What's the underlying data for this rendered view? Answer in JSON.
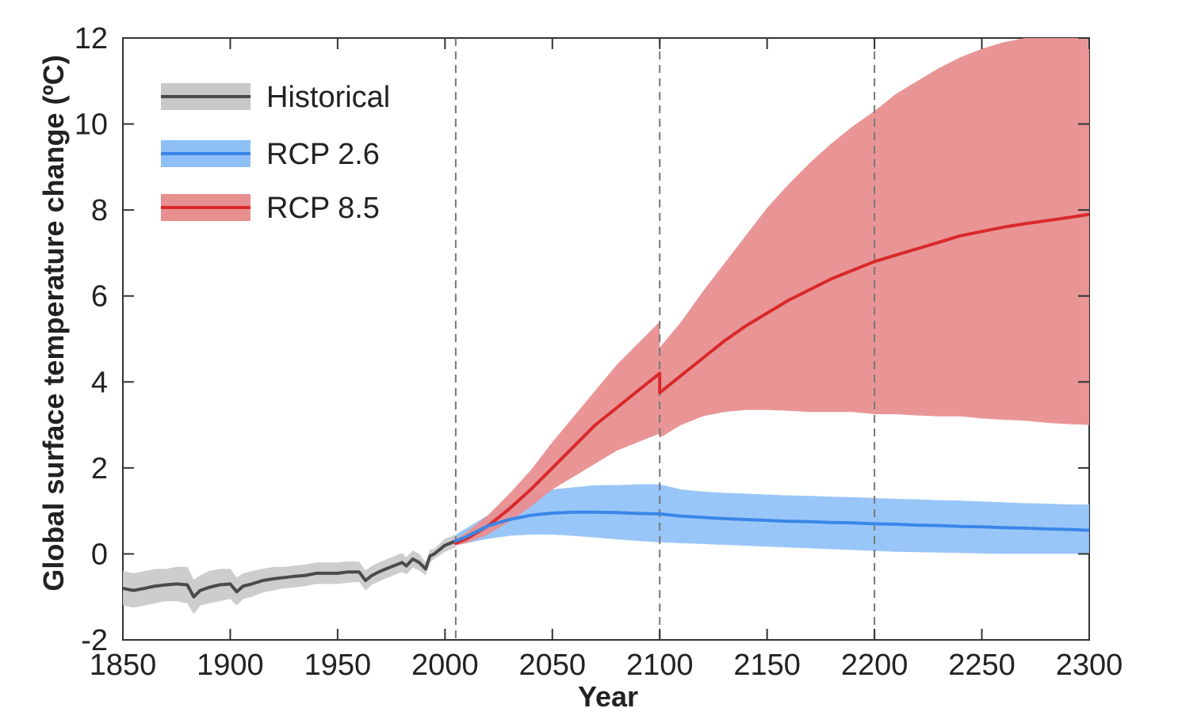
{
  "chart_data": {
    "type": "line",
    "title": "",
    "xlabel": "Year",
    "ylabel": "Global surface temperature change (ºC)",
    "xlim": [
      1850,
      2300
    ],
    "ylim": [
      -2,
      12
    ],
    "x_ticks": [
      1850,
      1900,
      1950,
      2000,
      2050,
      2100,
      2150,
      2200,
      2250,
      2300
    ],
    "x_tick_labels": [
      "1850",
      "1900",
      "1950",
      "2000",
      "2050",
      "2100",
      "2150",
      "2200",
      "2250",
      "2300"
    ],
    "y_ticks": [
      -2,
      0,
      2,
      4,
      6,
      8,
      10,
      12
    ],
    "y_tick_labels": [
      "-2",
      "0",
      "2",
      "4",
      "6",
      "8",
      "10",
      "12"
    ],
    "vertical_dashed_lines": [
      2005,
      2100,
      2200
    ],
    "legend_position": "top-left",
    "series": [
      {
        "name": "Historical",
        "line_color": "#4a4a4a",
        "band_color": "#c8c8c8",
        "x": [
          1850,
          1855,
          1860,
          1865,
          1870,
          1875,
          1880,
          1883,
          1886,
          1890,
          1895,
          1900,
          1903,
          1906,
          1910,
          1915,
          1920,
          1925,
          1930,
          1935,
          1940,
          1945,
          1950,
          1955,
          1960,
          1963,
          1966,
          1970,
          1975,
          1980,
          1982,
          1985,
          1988,
          1991,
          1993,
          1995,
          2000,
          2005
        ],
        "y": [
          -0.8,
          -0.85,
          -0.8,
          -0.75,
          -0.72,
          -0.7,
          -0.72,
          -1.0,
          -0.85,
          -0.78,
          -0.72,
          -0.7,
          -0.88,
          -0.75,
          -0.7,
          -0.62,
          -0.58,
          -0.55,
          -0.52,
          -0.5,
          -0.45,
          -0.45,
          -0.45,
          -0.42,
          -0.42,
          -0.62,
          -0.5,
          -0.4,
          -0.3,
          -0.2,
          -0.28,
          -0.12,
          -0.2,
          -0.35,
          -0.05,
          0.0,
          0.2,
          0.3
        ],
        "lower": [
          -1.2,
          -1.25,
          -1.2,
          -1.15,
          -1.1,
          -1.1,
          -1.15,
          -1.4,
          -1.2,
          -1.15,
          -1.1,
          -1.05,
          -1.2,
          -1.05,
          -1.0,
          -0.9,
          -0.85,
          -0.8,
          -0.78,
          -0.75,
          -0.7,
          -0.7,
          -0.7,
          -0.67,
          -0.65,
          -0.85,
          -0.72,
          -0.62,
          -0.52,
          -0.42,
          -0.48,
          -0.32,
          -0.38,
          -0.5,
          -0.2,
          -0.12,
          0.05,
          0.15
        ],
        "upper": [
          -0.4,
          -0.45,
          -0.4,
          -0.35,
          -0.35,
          -0.3,
          -0.3,
          -0.6,
          -0.5,
          -0.4,
          -0.35,
          -0.35,
          -0.55,
          -0.45,
          -0.4,
          -0.35,
          -0.3,
          -0.3,
          -0.27,
          -0.25,
          -0.2,
          -0.2,
          -0.2,
          -0.17,
          -0.18,
          -0.38,
          -0.28,
          -0.18,
          -0.08,
          0.02,
          -0.08,
          0.08,
          0.0,
          -0.2,
          0.1,
          0.12,
          0.35,
          0.45
        ]
      },
      {
        "name": "RCP 2.6",
        "line_color": "#3a86e8",
        "band_color": "#8ec0f7",
        "x": [
          2005,
          2010,
          2020,
          2030,
          2040,
          2050,
          2060,
          2070,
          2080,
          2090,
          2100,
          2110,
          2120,
          2130,
          2140,
          2150,
          2160,
          2170,
          2180,
          2190,
          2200,
          2210,
          2220,
          2230,
          2240,
          2250,
          2260,
          2270,
          2280,
          2290,
          2300
        ],
        "y": [
          0.3,
          0.4,
          0.65,
          0.8,
          0.9,
          0.95,
          0.97,
          0.97,
          0.96,
          0.94,
          0.93,
          0.88,
          0.85,
          0.82,
          0.8,
          0.78,
          0.76,
          0.75,
          0.73,
          0.72,
          0.7,
          0.69,
          0.67,
          0.66,
          0.64,
          0.63,
          0.61,
          0.6,
          0.58,
          0.57,
          0.55
        ],
        "lower": [
          0.2,
          0.25,
          0.35,
          0.42,
          0.45,
          0.45,
          0.42,
          0.38,
          0.34,
          0.3,
          0.27,
          0.25,
          0.23,
          0.21,
          0.19,
          0.17,
          0.15,
          0.13,
          0.11,
          0.09,
          0.07,
          0.05,
          0.04,
          0.03,
          0.02,
          0.01,
          0.0,
          0.0,
          0.0,
          0.0,
          0.0
        ],
        "upper": [
          0.45,
          0.6,
          0.9,
          1.15,
          1.35,
          1.5,
          1.55,
          1.6,
          1.6,
          1.62,
          1.62,
          1.5,
          1.45,
          1.42,
          1.4,
          1.38,
          1.36,
          1.35,
          1.33,
          1.32,
          1.3,
          1.28,
          1.27,
          1.25,
          1.24,
          1.22,
          1.2,
          1.18,
          1.17,
          1.15,
          1.15
        ]
      },
      {
        "name": "RCP 8.5",
        "line_color": "#d9292b",
        "band_color": "#e88f90",
        "x": [
          2005,
          2010,
          2020,
          2030,
          2040,
          2050,
          2060,
          2070,
          2080,
          2090,
          2100,
          2100,
          2110,
          2120,
          2130,
          2140,
          2150,
          2160,
          2170,
          2180,
          2190,
          2200,
          2210,
          2220,
          2230,
          2240,
          2250,
          2260,
          2270,
          2280,
          2290,
          2300
        ],
        "y": [
          0.25,
          0.35,
          0.65,
          1.05,
          1.5,
          2.0,
          2.5,
          3.0,
          3.4,
          3.8,
          4.2,
          3.75,
          4.15,
          4.55,
          4.95,
          5.3,
          5.6,
          5.9,
          6.15,
          6.4,
          6.6,
          6.8,
          6.95,
          7.1,
          7.25,
          7.4,
          7.5,
          7.6,
          7.68,
          7.75,
          7.82,
          7.9
        ],
        "lower": [
          0.2,
          0.25,
          0.45,
          0.75,
          1.1,
          1.5,
          1.8,
          2.1,
          2.4,
          2.6,
          2.8,
          2.7,
          3.0,
          3.2,
          3.3,
          3.35,
          3.35,
          3.33,
          3.3,
          3.3,
          3.3,
          3.25,
          3.25,
          3.22,
          3.2,
          3.2,
          3.15,
          3.12,
          3.1,
          3.05,
          3.02,
          3.0
        ],
        "upper": [
          0.35,
          0.5,
          0.9,
          1.4,
          1.95,
          2.6,
          3.2,
          3.8,
          4.4,
          4.9,
          5.4,
          4.8,
          5.4,
          6.1,
          6.75,
          7.4,
          8.05,
          8.6,
          9.1,
          9.55,
          9.95,
          10.3,
          10.7,
          11.0,
          11.3,
          11.55,
          11.75,
          11.9,
          12.0,
          12.0,
          12.0,
          12.0
        ]
      }
    ]
  }
}
